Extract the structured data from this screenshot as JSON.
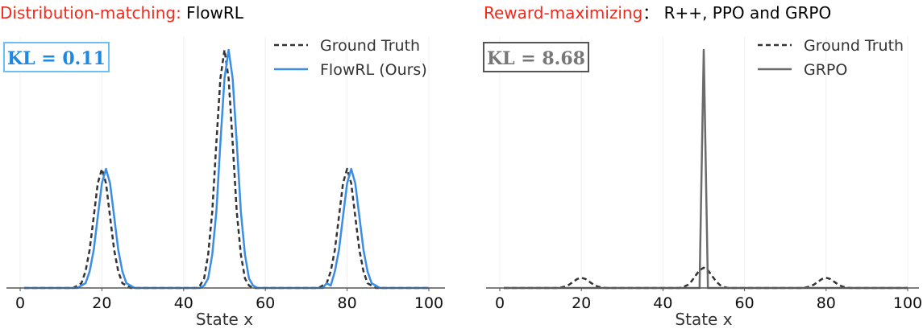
{
  "colors": {
    "accent_red": "#ee2a1c",
    "flowrl_blue": "#3a8ee6",
    "kl_blue": "#1e88e5",
    "kl_box_blue": "#6cc0f5",
    "ground_truth": "#333333",
    "grpo": "#6b6b6b",
    "grid": "#f0f0f0",
    "axis": "#555555"
  },
  "chart_data": [
    {
      "type": "line",
      "title_highlight": "Distribution-matching:",
      "title_rest": " FlowRL",
      "annotation": "KL = 0.11",
      "xlabel": "State x",
      "ylabel": "",
      "xlim": [
        0,
        100
      ],
      "xticks": [
        "0",
        "20",
        "40",
        "60",
        "80",
        "100"
      ],
      "y_ticks_shown": false,
      "grid": "vertical, faint",
      "legend_position": "top-right",
      "series": [
        {
          "name": "Ground Truth",
          "style": "dashed",
          "color": "#333333",
          "points": [
            [
              1,
              0
            ],
            [
              13,
              0
            ],
            [
              14,
              0.01
            ],
            [
              15,
              0.02
            ],
            [
              16,
              0.07
            ],
            [
              17,
              0.16
            ],
            [
              18,
              0.3
            ],
            [
              19,
              0.44
            ],
            [
              20,
              0.5
            ],
            [
              21,
              0.44
            ],
            [
              22,
              0.3
            ],
            [
              23,
              0.16
            ],
            [
              24,
              0.07
            ],
            [
              25,
              0.02
            ],
            [
              26,
              0.01
            ],
            [
              27,
              0
            ],
            [
              43,
              0
            ],
            [
              44,
              0.01
            ],
            [
              45,
              0.04
            ],
            [
              46,
              0.14
            ],
            [
              47,
              0.32
            ],
            [
              48,
              0.61
            ],
            [
              49,
              0.88
            ],
            [
              50,
              1.0
            ],
            [
              51,
              0.88
            ],
            [
              52,
              0.61
            ],
            [
              53,
              0.32
            ],
            [
              54,
              0.14
            ],
            [
              55,
              0.04
            ],
            [
              56,
              0.01
            ],
            [
              57,
              0
            ],
            [
              73,
              0
            ],
            [
              74,
              0.01
            ],
            [
              75,
              0.02
            ],
            [
              76,
              0.07
            ],
            [
              77,
              0.16
            ],
            [
              78,
              0.3
            ],
            [
              79,
              0.44
            ],
            [
              80,
              0.5
            ],
            [
              81,
              0.44
            ],
            [
              82,
              0.3
            ],
            [
              83,
              0.16
            ],
            [
              84,
              0.07
            ],
            [
              85,
              0.02
            ],
            [
              86,
              0.01
            ],
            [
              87,
              0
            ],
            [
              100,
              0
            ]
          ]
        },
        {
          "name": "FlowRL (Ours)",
          "style": "solid",
          "color": "#3a8ee6",
          "points": [
            [
              1,
              0
            ],
            [
              14,
              0
            ],
            [
              15,
              0.01
            ],
            [
              16,
              0.02
            ],
            [
              17,
              0.07
            ],
            [
              18,
              0.16
            ],
            [
              19,
              0.3
            ],
            [
              20,
              0.44
            ],
            [
              21,
              0.5
            ],
            [
              22,
              0.44
            ],
            [
              23,
              0.3
            ],
            [
              24,
              0.16
            ],
            [
              25,
              0.07
            ],
            [
              26,
              0.02
            ],
            [
              27,
              0.01
            ],
            [
              28,
              0
            ],
            [
              44,
              0
            ],
            [
              45,
              0.01
            ],
            [
              46,
              0.04
            ],
            [
              47,
              0.14
            ],
            [
              48,
              0.32
            ],
            [
              49,
              0.61
            ],
            [
              50,
              0.88
            ],
            [
              51,
              1.0
            ],
            [
              52,
              0.88
            ],
            [
              53,
              0.61
            ],
            [
              54,
              0.32
            ],
            [
              55,
              0.14
            ],
            [
              56,
              0.04
            ],
            [
              57,
              0.01
            ],
            [
              58,
              0
            ],
            [
              74,
              0
            ],
            [
              75,
              0.02
            ],
            [
              76,
              0.01
            ],
            [
              77,
              0.07
            ],
            [
              78,
              0.16
            ],
            [
              79,
              0.3
            ],
            [
              80,
              0.44
            ],
            [
              81,
              0.5
            ],
            [
              82,
              0.44
            ],
            [
              83,
              0.3
            ],
            [
              84,
              0.16
            ],
            [
              85,
              0.07
            ],
            [
              86,
              0.02
            ],
            [
              87,
              0.01
            ],
            [
              88,
              0
            ],
            [
              100,
              0
            ]
          ]
        }
      ]
    },
    {
      "type": "line",
      "title_highlight": "Reward-maximizing",
      "title_rest": "：  R++, PPO and GRPO",
      "annotation": "KL = 8.68",
      "xlabel": "State x",
      "ylabel": "",
      "xlim": [
        0,
        100
      ],
      "xticks": [
        "0",
        "20",
        "40",
        "60",
        "80",
        "100"
      ],
      "y_ticks_shown": false,
      "grid": "vertical, faint",
      "legend_position": "top-right",
      "series": [
        {
          "name": "Ground Truth",
          "style": "dashed",
          "color": "#333333",
          "points": [
            [
              1,
              0
            ],
            [
              14,
              0
            ],
            [
              15,
              0.002
            ],
            [
              16,
              0.006
            ],
            [
              17,
              0.014
            ],
            [
              18,
              0.026
            ],
            [
              19,
              0.038
            ],
            [
              20,
              0.043
            ],
            [
              21,
              0.038
            ],
            [
              22,
              0.026
            ],
            [
              23,
              0.014
            ],
            [
              24,
              0.006
            ],
            [
              25,
              0.002
            ],
            [
              26,
              0
            ],
            [
              44,
              0
            ],
            [
              45,
              0.004
            ],
            [
              46,
              0.012
            ],
            [
              47,
              0.028
            ],
            [
              48,
              0.052
            ],
            [
              49,
              0.075
            ],
            [
              50,
              0.085
            ],
            [
              51,
              0.075
            ],
            [
              52,
              0.052
            ],
            [
              53,
              0.028
            ],
            [
              54,
              0.012
            ],
            [
              55,
              0.004
            ],
            [
              56,
              0
            ],
            [
              74,
              0
            ],
            [
              75,
              0.002
            ],
            [
              76,
              0.006
            ],
            [
              77,
              0.014
            ],
            [
              78,
              0.026
            ],
            [
              79,
              0.038
            ],
            [
              80,
              0.043
            ],
            [
              81,
              0.038
            ],
            [
              82,
              0.026
            ],
            [
              83,
              0.014
            ],
            [
              84,
              0.006
            ],
            [
              85,
              0.002
            ],
            [
              86,
              0
            ],
            [
              100,
              0
            ]
          ]
        },
        {
          "name": "GRPO",
          "style": "solid",
          "color": "#6b6b6b",
          "points": [
            [
              1,
              0
            ],
            [
              49,
              0
            ],
            [
              49,
              0.02
            ],
            [
              50,
              1.0
            ],
            [
              51,
              0.02
            ],
            [
              51,
              0
            ],
            [
              100,
              0
            ]
          ]
        }
      ]
    }
  ]
}
